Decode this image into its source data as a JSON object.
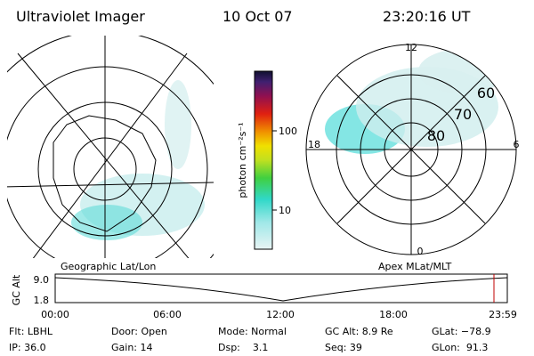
{
  "header": {
    "title": "Ultraviolet Imager",
    "date": "10 Oct 07",
    "time": "23:20:16 UT"
  },
  "left_panel": {
    "label": "Geographic Lat/Lon"
  },
  "right_panel": {
    "label": "Apex MLat/MLT",
    "mlt_labels": [
      "12",
      "18",
      "6",
      "0"
    ],
    "lat_labels": [
      "60",
      "70",
      "80"
    ]
  },
  "colorbar": {
    "label": "photon cm⁻²s⁻¹",
    "ticks": [
      "100",
      "10"
    ]
  },
  "altitude_strip": {
    "axis_label": "GC Alt",
    "y_ticks": [
      "9.0",
      "1.8"
    ],
    "x_ticks": [
      "00:00",
      "06:00",
      "12:00",
      "18:00",
      "23:59"
    ]
  },
  "footer": {
    "rows": [
      [
        "Flt: LBHL",
        "Door: Open",
        "Mode: Normal",
        "GC Alt: 8.9 Re",
        "GLat: −78.9"
      ],
      [
        "IP: 36.0",
        "Gain: 14",
        "Dsp:    3.1",
        "Seq: 39",
        "GLon:  91.3"
      ]
    ]
  }
}
